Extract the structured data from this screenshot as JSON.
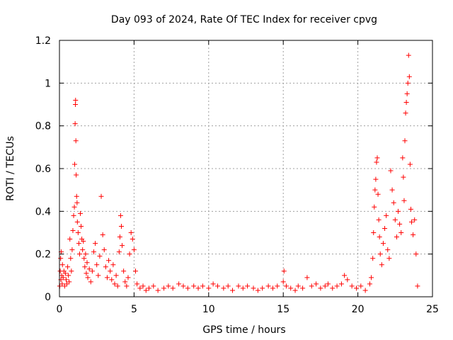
{
  "chart_data": {
    "type": "scatter",
    "title": "Day 093 of 2024, Rate Of TEC Index for receiver cpvg",
    "xlabel": "GPS time / hours",
    "ylabel": "ROTI / TECUs",
    "xlim": [
      0,
      25
    ],
    "ylim": [
      0,
      1.2
    ],
    "xticks": [
      0,
      5,
      10,
      15,
      20,
      25
    ],
    "xtick_labels": [
      "0",
      "5",
      "10",
      "15",
      "20",
      "25"
    ],
    "yticks": [
      0,
      0.2,
      0.4,
      0.6,
      0.8,
      1.0,
      1.2
    ],
    "ytick_labels": [
      "0",
      "0.2",
      "0.4",
      "0.6",
      "0.8",
      "1",
      "1.2"
    ],
    "grid": true,
    "marker": "+",
    "color": "#ff0000",
    "series": [
      {
        "points": [
          [
            0.02,
            0.05
          ],
          [
            0.05,
            0.12
          ],
          [
            0.08,
            0.18
          ],
          [
            0.1,
            0.08
          ],
          [
            0.12,
            0.21
          ],
          [
            0.15,
            0.1
          ],
          [
            0.18,
            0.06
          ],
          [
            0.2,
            0.15
          ],
          [
            0.25,
            0.09
          ],
          [
            0.3,
            0.12
          ],
          [
            0.35,
            0.05
          ],
          [
            0.4,
            0.11
          ],
          [
            0.45,
            0.08
          ],
          [
            0.5,
            0.06
          ],
          [
            0.55,
            0.14
          ],
          [
            0.6,
            0.1
          ],
          [
            0.65,
            0.07
          ],
          [
            0.7,
            0.27
          ],
          [
            0.75,
            0.18
          ],
          [
            0.8,
            0.12
          ],
          [
            0.85,
            0.22
          ],
          [
            0.9,
            0.31
          ],
          [
            0.95,
            0.38
          ],
          [
            1.0,
            0.42
          ],
          [
            1.02,
            0.62
          ],
          [
            1.05,
            0.81
          ],
          [
            1.07,
            0.9
          ],
          [
            1.08,
            0.92
          ],
          [
            1.1,
            0.73
          ],
          [
            1.12,
            0.57
          ],
          [
            1.15,
            0.47
          ],
          [
            1.18,
            0.44
          ],
          [
            1.2,
            0.35
          ],
          [
            1.25,
            0.3
          ],
          [
            1.3,
            0.25
          ],
          [
            1.35,
            0.2
          ],
          [
            1.4,
            0.39
          ],
          [
            1.45,
            0.33
          ],
          [
            1.5,
            0.27
          ],
          [
            1.55,
            0.22
          ],
          [
            1.6,
            0.26
          ],
          [
            1.65,
            0.18
          ],
          [
            1.7,
            0.14
          ],
          [
            1.75,
            0.2
          ],
          [
            1.8,
            0.11
          ],
          [
            1.85,
            0.16
          ],
          [
            1.9,
            0.09
          ],
          [
            2.0,
            0.13
          ],
          [
            2.1,
            0.07
          ],
          [
            2.2,
            0.12
          ],
          [
            2.3,
            0.21
          ],
          [
            2.4,
            0.25
          ],
          [
            2.5,
            0.15
          ],
          [
            2.6,
            0.1
          ],
          [
            2.7,
            0.19
          ],
          [
            2.8,
            0.47
          ],
          [
            2.9,
            0.29
          ],
          [
            3.0,
            0.22
          ],
          [
            3.1,
            0.14
          ],
          [
            3.2,
            0.09
          ],
          [
            3.3,
            0.17
          ],
          [
            3.4,
            0.12
          ],
          [
            3.5,
            0.08
          ],
          [
            3.6,
            0.15
          ],
          [
            3.7,
            0.06
          ],
          [
            3.8,
            0.1
          ],
          [
            3.9,
            0.05
          ],
          [
            4.0,
            0.21
          ],
          [
            4.05,
            0.28
          ],
          [
            4.1,
            0.38
          ],
          [
            4.15,
            0.33
          ],
          [
            4.2,
            0.24
          ],
          [
            4.3,
            0.12
          ],
          [
            4.4,
            0.07
          ],
          [
            4.5,
            0.05
          ],
          [
            4.6,
            0.09
          ],
          [
            4.7,
            0.2
          ],
          [
            4.8,
            0.3
          ],
          [
            4.9,
            0.27
          ],
          [
            5.0,
            0.22
          ],
          [
            5.1,
            0.12
          ],
          [
            5.2,
            0.06
          ],
          [
            5.4,
            0.04
          ],
          [
            5.6,
            0.05
          ],
          [
            5.8,
            0.03
          ],
          [
            6.0,
            0.04
          ],
          [
            6.3,
            0.05
          ],
          [
            6.6,
            0.03
          ],
          [
            7.0,
            0.04
          ],
          [
            7.3,
            0.05
          ],
          [
            7.6,
            0.04
          ],
          [
            8.0,
            0.06
          ],
          [
            8.3,
            0.05
          ],
          [
            8.6,
            0.04
          ],
          [
            9.0,
            0.05
          ],
          [
            9.3,
            0.04
          ],
          [
            9.6,
            0.05
          ],
          [
            10.0,
            0.04
          ],
          [
            10.3,
            0.06
          ],
          [
            10.6,
            0.05
          ],
          [
            11.0,
            0.04
          ],
          [
            11.3,
            0.05
          ],
          [
            11.6,
            0.03
          ],
          [
            12.0,
            0.05
          ],
          [
            12.3,
            0.04
          ],
          [
            12.6,
            0.05
          ],
          [
            13.0,
            0.04
          ],
          [
            13.3,
            0.03
          ],
          [
            13.6,
            0.04
          ],
          [
            14.0,
            0.05
          ],
          [
            14.3,
            0.04
          ],
          [
            14.6,
            0.05
          ],
          [
            15.0,
            0.07
          ],
          [
            15.05,
            0.12
          ],
          [
            15.2,
            0.05
          ],
          [
            15.5,
            0.04
          ],
          [
            15.8,
            0.03
          ],
          [
            16.0,
            0.05
          ],
          [
            16.3,
            0.04
          ],
          [
            16.6,
            0.09
          ],
          [
            16.9,
            0.05
          ],
          [
            17.2,
            0.06
          ],
          [
            17.5,
            0.04
          ],
          [
            17.8,
            0.05
          ],
          [
            18.0,
            0.06
          ],
          [
            18.3,
            0.04
          ],
          [
            18.6,
            0.05
          ],
          [
            18.9,
            0.06
          ],
          [
            19.1,
            0.1
          ],
          [
            19.3,
            0.08
          ],
          [
            19.6,
            0.05
          ],
          [
            19.9,
            0.04
          ],
          [
            20.2,
            0.05
          ],
          [
            20.5,
            0.03
          ],
          [
            20.8,
            0.06
          ],
          [
            20.9,
            0.09
          ],
          [
            21.0,
            0.18
          ],
          [
            21.05,
            0.3
          ],
          [
            21.1,
            0.42
          ],
          [
            21.15,
            0.5
          ],
          [
            21.2,
            0.55
          ],
          [
            21.25,
            0.63
          ],
          [
            21.3,
            0.65
          ],
          [
            21.35,
            0.48
          ],
          [
            21.4,
            0.36
          ],
          [
            21.45,
            0.28
          ],
          [
            21.5,
            0.2
          ],
          [
            21.6,
            0.15
          ],
          [
            21.7,
            0.25
          ],
          [
            21.8,
            0.32
          ],
          [
            21.9,
            0.38
          ],
          [
            22.0,
            0.22
          ],
          [
            22.1,
            0.18
          ],
          [
            22.2,
            0.59
          ],
          [
            22.3,
            0.5
          ],
          [
            22.4,
            0.44
          ],
          [
            22.5,
            0.36
          ],
          [
            22.6,
            0.28
          ],
          [
            22.7,
            0.4
          ],
          [
            22.8,
            0.34
          ],
          [
            22.9,
            0.3
          ],
          [
            23.0,
            0.65
          ],
          [
            23.05,
            0.56
          ],
          [
            23.1,
            0.45
          ],
          [
            23.15,
            0.73
          ],
          [
            23.2,
            0.86
          ],
          [
            23.25,
            0.91
          ],
          [
            23.3,
            0.95
          ],
          [
            23.35,
            1.0
          ],
          [
            23.4,
            1.13
          ],
          [
            23.45,
            1.03
          ],
          [
            23.5,
            0.62
          ],
          [
            23.55,
            0.41
          ],
          [
            23.6,
            0.35
          ],
          [
            23.7,
            0.29
          ],
          [
            23.8,
            0.36
          ],
          [
            23.9,
            0.2
          ],
          [
            24.0,
            0.05
          ]
        ]
      }
    ]
  }
}
